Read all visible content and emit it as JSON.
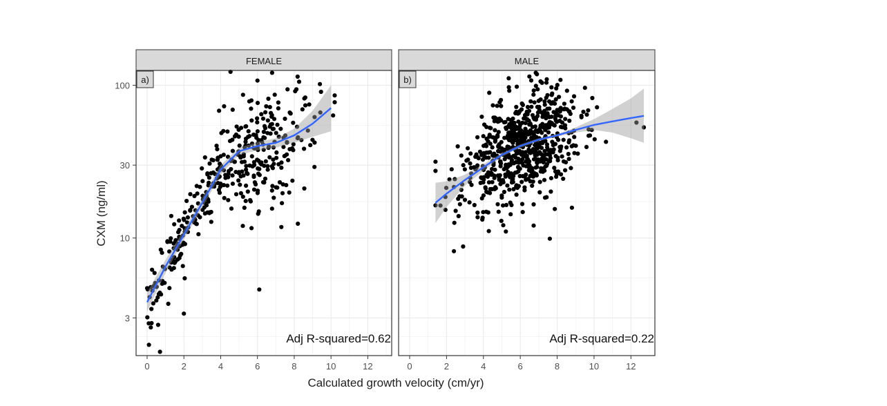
{
  "figure": {
    "xlabel": "Calculated growth velocity (cm/yr)",
    "ylabel": "CXM (ng/ml)"
  },
  "colors": {
    "point": "#000000",
    "smooth_line": "#3366ff",
    "ribbon": "#999999",
    "strip_fill": "#d9d9d9",
    "grid": "#ebebeb",
    "panel_border": "#333333"
  },
  "chart_data": [
    {
      "type": "scatter",
      "strip_label": "FEMALE",
      "panel_tag": "a)",
      "annotation": "Adj R-squared=0.62",
      "y_scale": "log",
      "xlim": [
        -0.6,
        13.3
      ],
      "ylim": [
        1.7,
        125
      ],
      "x_ticks": [
        0,
        2,
        4,
        6,
        8,
        10,
        12
      ],
      "y_ticks": [
        3,
        10,
        30,
        100
      ],
      "smooth": {
        "x": [
          0,
          1,
          2,
          3,
          4,
          5,
          6,
          7,
          8,
          9,
          10
        ],
        "y": [
          3.8,
          6.5,
          10.5,
          17,
          28,
          37,
          40,
          42,
          47,
          56,
          71
        ],
        "lower": [
          3.3,
          5.9,
          9.8,
          15.8,
          26,
          35,
          37.5,
          39,
          42,
          46,
          50
        ],
        "upper": [
          4.4,
          7.2,
          11.3,
          18.3,
          30,
          39,
          42.5,
          45,
          52,
          68,
          100
        ]
      },
      "points_seed": 11,
      "points": {
        "n": 400,
        "x_range": [
          0,
          10.2
        ],
        "x_mode": 6,
        "spread_log": 0.45,
        "sparse_low_x": true,
        "extra": [
          [
            0.1,
            2.0
          ],
          [
            0.7,
            1.8
          ],
          [
            0.2,
            2.6
          ],
          [
            0.6,
            2.7
          ],
          [
            2.0,
            3.2
          ],
          [
            6.1,
            4.6
          ],
          [
            0.0,
            4.7
          ],
          [
            0.5,
            3.9
          ],
          [
            8.2,
            12.4
          ],
          [
            7.3,
            11.8
          ]
        ]
      }
    },
    {
      "type": "scatter",
      "strip_label": "MALE",
      "panel_tag": "b)",
      "annotation": "Adj R-squared=0.22",
      "y_scale": "log",
      "xlim": [
        -0.6,
        13.3
      ],
      "ylim": [
        1.7,
        125
      ],
      "x_ticks": [
        0,
        2,
        4,
        6,
        8,
        10,
        12
      ],
      "y_ticks": [
        3,
        10,
        30,
        100
      ],
      "smooth": {
        "x": [
          1.4,
          2,
          3,
          4,
          5,
          6,
          7,
          8,
          9,
          10,
          11,
          12,
          12.7
        ],
        "y": [
          17,
          19.5,
          24,
          29,
          35,
          40,
          44,
          47,
          51,
          55,
          58,
          61,
          63
        ],
        "lower": [
          12.5,
          16,
          22,
          27.5,
          34,
          39,
          43,
          46,
          49,
          51,
          49,
          45,
          42
        ],
        "upper": [
          23,
          23.5,
          26,
          30.5,
          36,
          41,
          45,
          48,
          53,
          60,
          70,
          82,
          95
        ]
      },
      "points_seed": 23,
      "points": {
        "n": 700,
        "x_range": [
          1.4,
          12.8
        ],
        "x_mode": 6,
        "spread_log": 0.4,
        "sparse_low_x": false,
        "extra": [
          [
            2.4,
            8.2
          ],
          [
            2.9,
            8.8
          ],
          [
            7.6,
            9.9
          ],
          [
            8.8,
            15.8
          ],
          [
            12.7,
            53
          ],
          [
            12.3,
            57
          ],
          [
            1.4,
            27.5
          ],
          [
            6.9,
            118
          ]
        ]
      }
    }
  ]
}
